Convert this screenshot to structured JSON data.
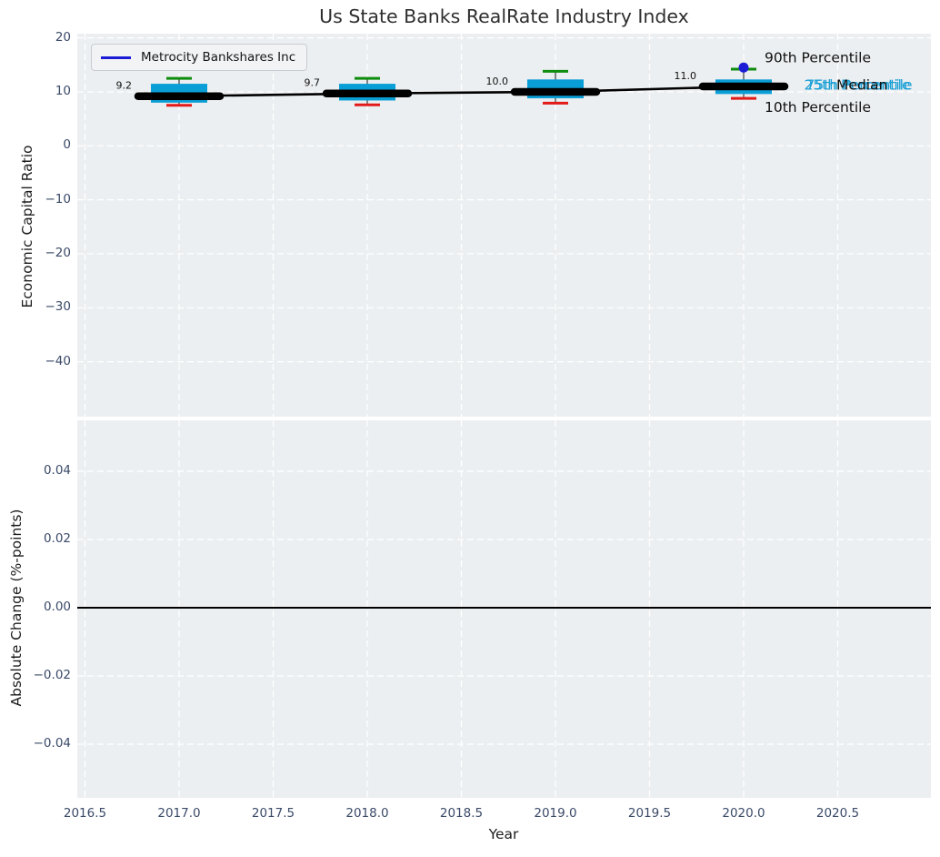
{
  "title": "Us State Banks RealRate Industry Index",
  "colors": {
    "panel_bg": "#eceff1",
    "grid": "#ffffff",
    "tick_text": "#3a4a68",
    "box_fill": "#0a9ed6",
    "median_line": "#000000",
    "whisker_top_cap": "#0e8c0e",
    "whisker_bottom_cap": "#e31a1a",
    "company_blue": "#1b1bd6",
    "cyan_text": "#1a9fd6",
    "zero_line": "#000000"
  },
  "legend": {
    "label": "Metrocity Bankshares Inc"
  },
  "chart_data": [
    {
      "type": "box",
      "panel": "top",
      "title": "Us State Banks RealRate Industry Index",
      "xlabel": "Year",
      "ylabel": "Economic Capital Ratio",
      "x_tick_labels": [
        "2016.5",
        "2017.0",
        "2017.5",
        "2018.0",
        "2018.5",
        "2019.0",
        "2019.5",
        "2020.0",
        "2020.5"
      ],
      "x_tick_values": [
        2016.5,
        2017.0,
        2017.5,
        2018.0,
        2018.5,
        2019.0,
        2019.5,
        2020.0,
        2020.5
      ],
      "y_tick_labels": [
        "20",
        "10",
        "0",
        "−10",
        "−20",
        "−30",
        "−40"
      ],
      "y_tick_values": [
        20,
        10,
        0,
        -10,
        -20,
        -30,
        -40
      ],
      "xlim": [
        2016.46,
        2021.0
      ],
      "ylim": [
        -50.3,
        20.8
      ],
      "grid": "white-dashed",
      "boxes": [
        {
          "year": 2017,
          "p10": 7.5,
          "q1": 8.0,
          "median": 9.2,
          "q3": 11.5,
          "p90": 12.5,
          "label": "9.2"
        },
        {
          "year": 2018,
          "p10": 7.6,
          "q1": 8.4,
          "median": 9.7,
          "q3": 11.5,
          "p90": 12.5,
          "label": "9.7"
        },
        {
          "year": 2019,
          "p10": 7.9,
          "q1": 8.8,
          "median": 10.0,
          "q3": 12.3,
          "p90": 13.8,
          "label": "10.0"
        },
        {
          "year": 2020,
          "p10": 8.8,
          "q1": 9.6,
          "median": 11.0,
          "q3": 12.3,
          "p90": 14.2,
          "label": "11.0"
        }
      ],
      "company_series": {
        "name": "Metrocity Bankshares Inc",
        "points": [
          {
            "year": 2020,
            "value": 14.5
          }
        ]
      },
      "percentile_annotations": {
        "p90": "90th Percentile",
        "median": "Median",
        "p75": "75th Percentile",
        "p25": "25th Percentile",
        "p10": "10th Percentile"
      }
    },
    {
      "type": "line",
      "panel": "bottom",
      "xlabel": "Year",
      "ylabel": "Absolute Change (%-points)",
      "y_tick_labels": [
        "0.04",
        "0.02",
        "0.00",
        "−0.02",
        "−0.04"
      ],
      "y_tick_values": [
        0.04,
        0.02,
        0.0,
        -0.02,
        -0.04
      ],
      "ylim": [
        -0.056,
        0.055
      ],
      "zero_line": 0.0,
      "values": []
    }
  ]
}
